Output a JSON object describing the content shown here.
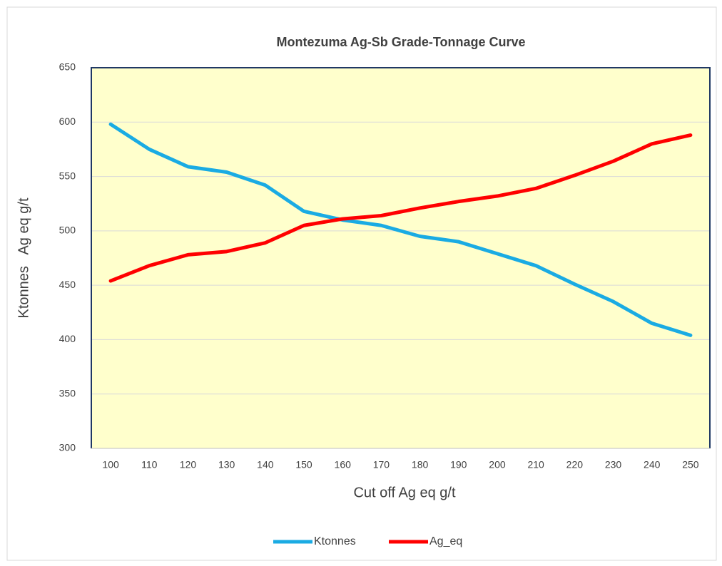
{
  "chart_data": {
    "type": "line",
    "title": "Montezuma Ag-Sb Grade-Tonnage Curve",
    "x_label": "Cut off Ag eq g/t",
    "y_label": "Ktonnes   Ag eq g/t",
    "categories": [
      100,
      110,
      120,
      130,
      140,
      150,
      160,
      170,
      180,
      190,
      200,
      210,
      220,
      230,
      240,
      250
    ],
    "series": [
      {
        "name": "Ktonnes",
        "color": "#1aabe3",
        "values": [
          598,
          575,
          559,
          554,
          542,
          518,
          510,
          505,
          495,
          490,
          479,
          468,
          451,
          435,
          415,
          404
        ]
      },
      {
        "name": "Ag_eq",
        "color": "#ff0000",
        "values": [
          454,
          468,
          478,
          481,
          489,
          505,
          511,
          514,
          521,
          527,
          532,
          539,
          551,
          564,
          580,
          588
        ]
      }
    ],
    "ylim": [
      300,
      650
    ],
    "yticks": [
      300,
      350,
      400,
      450,
      500,
      550,
      600,
      650
    ],
    "grid": true,
    "legend": "bottom",
    "plot_background": "#ffffcc"
  }
}
